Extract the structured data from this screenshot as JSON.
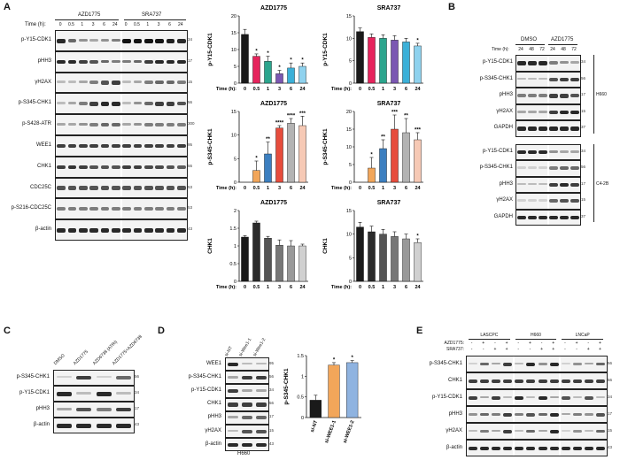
{
  "panels": {
    "A": {
      "letter": "A",
      "treatments": [
        "AZD1775",
        "SRA737"
      ],
      "time_label": "Time (h):",
      "times": [
        "0",
        "0.5",
        "1",
        "3",
        "6",
        "24"
      ],
      "rows": [
        {
          "label": "p-Y15-CDK1",
          "kda": "34",
          "intensity": [
            0.9,
            0.6,
            0.4,
            0.3,
            0.4,
            0.5,
            1,
            1,
            1,
            1,
            0.95,
            0.9
          ]
        },
        {
          "label": "pHH3",
          "kda": "17",
          "intensity": [
            0.9,
            0.9,
            0.8,
            0.7,
            0.6,
            0.5,
            0.5,
            0.6,
            0.8,
            0.9,
            0.9,
            0.9
          ]
        },
        {
          "label": "γH2AX",
          "kda": "15",
          "intensity": [
            0.2,
            0.2,
            0.3,
            0.5,
            0.7,
            0.8,
            0.2,
            0.3,
            0.5,
            0.6,
            0.6,
            0.5
          ]
        },
        {
          "label": "p-S345-CHK1",
          "kda": "56",
          "intensity": [
            0.2,
            0.3,
            0.5,
            0.8,
            0.9,
            0.9,
            0.2,
            0.4,
            0.6,
            0.8,
            0.8,
            0.7
          ]
        },
        {
          "label": "p-S428-ATR",
          "kda": "300",
          "intensity": [
            0.3,
            0.3,
            0.4,
            0.5,
            0.6,
            0.6,
            0.3,
            0.4,
            0.5,
            0.5,
            0.5,
            0.5
          ]
        },
        {
          "label": "WEE1",
          "kda": "95",
          "intensity": [
            0.8,
            0.8,
            0.8,
            0.8,
            0.8,
            0.8,
            0.8,
            0.8,
            0.8,
            0.8,
            0.8,
            0.8
          ]
        },
        {
          "label": "CHK1",
          "kda": "56",
          "intensity": [
            0.8,
            0.85,
            0.8,
            0.7,
            0.7,
            0.7,
            0.8,
            0.8,
            0.75,
            0.75,
            0.7,
            0.65
          ]
        },
        {
          "label": "CDC25C",
          "kda": "53",
          "intensity": [
            0.7,
            0.7,
            0.7,
            0.7,
            0.7,
            0.7,
            0.7,
            0.7,
            0.7,
            0.7,
            0.7,
            0.7
          ]
        },
        {
          "label": "p-S216-CDC25C",
          "kda": "53",
          "intensity": [
            0.5,
            0.5,
            0.5,
            0.5,
            0.5,
            0.5,
            0.5,
            0.5,
            0.5,
            0.5,
            0.5,
            0.5
          ]
        },
        {
          "label": "β-actin",
          "kda": "43",
          "intensity": [
            0.9,
            0.9,
            0.9,
            0.9,
            0.9,
            0.9,
            0.9,
            0.9,
            0.9,
            0.9,
            0.9,
            0.9
          ]
        }
      ]
    },
    "B": {
      "letter": "B",
      "groups": [
        "DMSO",
        "AZD1775"
      ],
      "time_label": "Time (h):",
      "times": [
        "24",
        "48",
        "72",
        "24",
        "48",
        "72"
      ],
      "sections": [
        {
          "cell_line": "H660",
          "rows": [
            {
              "label": "p-Y15-CDK1",
              "kda": "34",
              "intensity": [
                0.9,
                0.9,
                0.9,
                0.5,
                0.4,
                0.3
              ]
            },
            {
              "label": "p-S345-CHK1",
              "kda": "56",
              "intensity": [
                0.2,
                0.2,
                0.2,
                0.7,
                0.8,
                0.8
              ]
            },
            {
              "label": "pHH3",
              "kda": "17",
              "intensity": [
                0.5,
                0.5,
                0.5,
                0.8,
                0.8,
                0.7
              ]
            },
            {
              "label": "γH2AX",
              "kda": "15",
              "intensity": [
                0.3,
                0.3,
                0.3,
                0.8,
                0.9,
                0.9
              ]
            },
            {
              "label": "GAPDH",
              "kda": "37",
              "intensity": [
                0.9,
                0.9,
                0.9,
                0.9,
                0.9,
                0.9
              ]
            }
          ]
        },
        {
          "cell_line": "C4-2B",
          "rows": [
            {
              "label": "p-Y15-CDK1",
              "kda": "34",
              "intensity": [
                0.9,
                0.9,
                0.9,
                0.4,
                0.3,
                0.3
              ]
            },
            {
              "label": "p-S345-CHK1",
              "kda": "56",
              "intensity": [
                0.1,
                0.1,
                0.1,
                0.5,
                0.6,
                0.6
              ]
            },
            {
              "label": "pHH3",
              "kda": "17",
              "intensity": [
                0.2,
                0.2,
                0.2,
                0.8,
                0.9,
                0.8
              ]
            },
            {
              "label": "γH2AX",
              "kda": "15",
              "intensity": [
                0.1,
                0.1,
                0.1,
                0.6,
                0.7,
                0.7
              ]
            },
            {
              "label": "GAPDH",
              "kda": "37",
              "intensity": [
                0.9,
                0.9,
                0.9,
                0.9,
                0.9,
                0.9
              ]
            }
          ]
        }
      ]
    },
    "C": {
      "letter": "C",
      "lanes": [
        "DMSO",
        "AZD1775",
        "AZD6738 (ATRi)",
        "AZD1775+AZD6738"
      ],
      "rows": [
        {
          "label": "p-S345-CHK1",
          "kda": "56",
          "intensity": [
            0.1,
            0.8,
            0.1,
            0.6
          ]
        },
        {
          "label": "p-Y15-CDK1",
          "kda": "34",
          "intensity": [
            0.9,
            0.2,
            0.9,
            0.2
          ]
        },
        {
          "label": "pHH3",
          "kda": "17",
          "intensity": [
            0.3,
            0.7,
            0.5,
            0.8
          ]
        },
        {
          "label": "β-actin",
          "kda": "43",
          "intensity": [
            0.9,
            0.9,
            0.9,
            0.9
          ]
        }
      ]
    },
    "D": {
      "letter": "D",
      "lanes": [
        "si-NT",
        "si-Wee1-1",
        "si-Wee1-2"
      ],
      "cell_line": "H660",
      "rows": [
        {
          "label": "WEE1",
          "kda": "95",
          "intensity": [
            0.9,
            0.2,
            0.2
          ]
        },
        {
          "label": "p-S345-CHK1",
          "kda": "56",
          "intensity": [
            0.3,
            0.8,
            0.8
          ]
        },
        {
          "label": "p-Y15-CDK1",
          "kda": "34",
          "intensity": [
            0.8,
            0.3,
            0.3
          ]
        },
        {
          "label": "CHK1",
          "kda": "56",
          "intensity": [
            0.8,
            0.8,
            0.8
          ]
        },
        {
          "label": "pHH3",
          "kda": "17",
          "intensity": [
            0.3,
            0.6,
            0.6
          ]
        },
        {
          "label": "γH2AX",
          "kda": "15",
          "intensity": [
            0.2,
            0.7,
            0.7
          ]
        },
        {
          "label": "β-actin",
          "kda": "43",
          "intensity": [
            0.9,
            0.9,
            0.9
          ]
        }
      ]
    },
    "E": {
      "letter": "E",
      "cell_lines": [
        "LASCPC",
        "H660",
        "LNCaP"
      ],
      "treat_labels": [
        "AZD1775:",
        "SRA737:"
      ],
      "azd": [
        "-",
        "+",
        "-",
        "+",
        "-",
        "+",
        "-",
        "+",
        "-",
        "+",
        "-",
        "+"
      ],
      "sra": [
        "-",
        "-",
        "+",
        "+",
        "-",
        "-",
        "+",
        "+",
        "-",
        "-",
        "+",
        "+"
      ],
      "rows": [
        {
          "label": "p-S345-CHK1",
          "kda": "56",
          "intensity": [
            0.1,
            0.6,
            0.3,
            0.8,
            0.2,
            0.9,
            0.4,
            0.9,
            0.1,
            0.4,
            0.3,
            0.6
          ]
        },
        {
          "label": "CHK1",
          "kda": "56",
          "intensity": [
            0.8,
            0.8,
            0.8,
            0.8,
            0.8,
            0.8,
            0.8,
            0.8,
            0.8,
            0.8,
            0.8,
            0.8
          ]
        },
        {
          "label": "p-Y15-CDK1",
          "kda": "34",
          "intensity": [
            0.8,
            0.3,
            0.8,
            0.2,
            0.9,
            0.2,
            0.9,
            0.3,
            0.7,
            0.2,
            0.7,
            0.2
          ]
        },
        {
          "label": "pHH3",
          "kda": "17",
          "intensity": [
            0.4,
            0.6,
            0.5,
            0.8,
            0.5,
            0.7,
            0.6,
            0.9,
            0.3,
            0.5,
            0.4,
            0.7
          ]
        },
        {
          "label": "γH2AX",
          "kda": "15",
          "intensity": [
            0.2,
            0.5,
            0.3,
            0.8,
            0.2,
            0.6,
            0.3,
            0.9,
            0.1,
            0.4,
            0.2,
            0.6
          ]
        },
        {
          "label": "β-actin",
          "kda": "43",
          "intensity": [
            0.9,
            0.9,
            0.9,
            0.9,
            0.9,
            0.9,
            0.9,
            0.9,
            0.9,
            0.9,
            0.9,
            0.9
          ]
        }
      ]
    }
  },
  "chart_data": [
    {
      "id": "a-azd-py15",
      "type": "bar",
      "title": "AZD1775",
      "ylabel": "p-Y15-CDK1",
      "xlabel": "Time (h):",
      "categories": [
        "0",
        "0.5",
        "1",
        "3",
        "6",
        "24"
      ],
      "values": [
        14.5,
        8,
        6.5,
        2.8,
        4.5,
        5
      ],
      "errors": [
        1.5,
        0.7,
        1.5,
        1,
        1.5,
        1
      ],
      "ylim": [
        0,
        20
      ],
      "yticks": [
        0,
        5,
        10,
        15,
        20
      ],
      "stars": [
        "",
        "*",
        "*",
        "*",
        "*",
        "*"
      ],
      "colors": [
        "#1a1a1a",
        "#e6245c",
        "#2ca58d",
        "#7b57b2",
        "#3bb0d8",
        "#8fd2ee"
      ]
    },
    {
      "id": "a-sra-py15",
      "type": "bar",
      "title": "SRA737",
      "ylabel": "p-Y15-CDK1",
      "xlabel": "Time (h):",
      "categories": [
        "0",
        "0.5",
        "1",
        "3",
        "6",
        "24"
      ],
      "values": [
        11.5,
        10.2,
        10,
        9.6,
        9.2,
        8.3
      ],
      "errors": [
        0.8,
        0.8,
        0.8,
        1,
        0.8,
        0.6
      ],
      "ylim": [
        0,
        15
      ],
      "yticks": [
        0,
        5,
        10,
        15
      ],
      "stars": [
        "",
        "",
        "",
        "",
        "",
        "*"
      ],
      "colors": [
        "#1a1a1a",
        "#e6245c",
        "#2ca58d",
        "#7b57b2",
        "#3bb0d8",
        "#8fd2ee"
      ]
    },
    {
      "id": "a-azd-ps345",
      "type": "bar",
      "title": "AZD1775",
      "ylabel": "p-S345-CHK1",
      "xlabel": "Time (h):",
      "categories": [
        "0",
        "0.5",
        "1",
        "3",
        "6",
        "24"
      ],
      "values": [
        0,
        2.5,
        6,
        11.5,
        12.5,
        12
      ],
      "errors": [
        0,
        2,
        2.5,
        0.5,
        1,
        2
      ],
      "ylim": [
        0,
        15
      ],
      "yticks": [
        0,
        5,
        10,
        15
      ],
      "stars": [
        "",
        "*",
        "**",
        "****",
        "****",
        "***"
      ],
      "colors": [
        "#1a1a1a",
        "#f2a65a",
        "#3c7fc0",
        "#e74c3c",
        "#b3b3b3",
        "#f6c9b5"
      ]
    },
    {
      "id": "a-sra-ps345",
      "type": "bar",
      "title": "SRA737",
      "ylabel": "p-S345-CHK1",
      "xlabel": "Time (h):",
      "categories": [
        "0",
        "0.5",
        "1",
        "3",
        "6",
        "24"
      ],
      "values": [
        0,
        4,
        9.5,
        15,
        14,
        12
      ],
      "errors": [
        0,
        3,
        2.5,
        4,
        4,
        2
      ],
      "ylim": [
        0,
        20
      ],
      "yticks": [
        0,
        5,
        10,
        15,
        20
      ],
      "stars": [
        "",
        "*",
        "**",
        "***",
        "**",
        "***"
      ],
      "colors": [
        "#1a1a1a",
        "#f2a65a",
        "#3c7fc0",
        "#e74c3c",
        "#b3b3b3",
        "#f6c9b5"
      ]
    },
    {
      "id": "a-azd-chk1",
      "type": "bar",
      "title": "AZD1775",
      "ylabel": "CHK1",
      "xlabel": "Time (h):",
      "categories": [
        "0",
        "0.5",
        "1",
        "3",
        "6",
        "24"
      ],
      "values": [
        1.25,
        1.65,
        1.22,
        1.02,
        1.0,
        1.0
      ],
      "errors": [
        0.04,
        0.05,
        0.05,
        0.15,
        0.15,
        0.05
      ],
      "ylim": [
        0,
        2.0
      ],
      "yticks": [
        0,
        0.5,
        1.0,
        1.5,
        2.0
      ],
      "stars": [
        "",
        "",
        "",
        "",
        "",
        ""
      ],
      "colors": [
        "#1a1a1a",
        "#2b2b2b",
        "#555555",
        "#777777",
        "#999999",
        "#d0d0d0"
      ]
    },
    {
      "id": "a-sra-chk1",
      "type": "bar",
      "title": "SRA737",
      "ylabel": "CHK1",
      "xlabel": "Time (h):",
      "categories": [
        "0",
        "0.5",
        "1",
        "3",
        "6",
        "24"
      ],
      "values": [
        11.5,
        10.5,
        10,
        9.5,
        9,
        8.2
      ],
      "errors": [
        1,
        1.2,
        1,
        1,
        1,
        0.8
      ],
      "ylim": [
        0,
        15
      ],
      "yticks": [
        0,
        5,
        10,
        15
      ],
      "stars": [
        "",
        "",
        "",
        "",
        "",
        "*"
      ],
      "colors": [
        "#1a1a1a",
        "#2b2b2b",
        "#555555",
        "#777777",
        "#999999",
        "#d0d0d0"
      ]
    },
    {
      "id": "d-ps345",
      "type": "bar",
      "title": "",
      "ylabel": "p-S345-CHK1",
      "xlabel": "",
      "categories": [
        "si-NT",
        "si-WEE1-1",
        "si-WEE1-2"
      ],
      "values": [
        0.42,
        1.27,
        1.33
      ],
      "errors": [
        0.12,
        0.06,
        0.05
      ],
      "ylim": [
        0,
        1.5
      ],
      "yticks": [
        0.0,
        0.5,
        1.0,
        1.5
      ],
      "stars": [
        "",
        "*",
        "*"
      ],
      "colors": [
        "#1a1a1a",
        "#f2a65a",
        "#8fb3e0"
      ]
    }
  ]
}
